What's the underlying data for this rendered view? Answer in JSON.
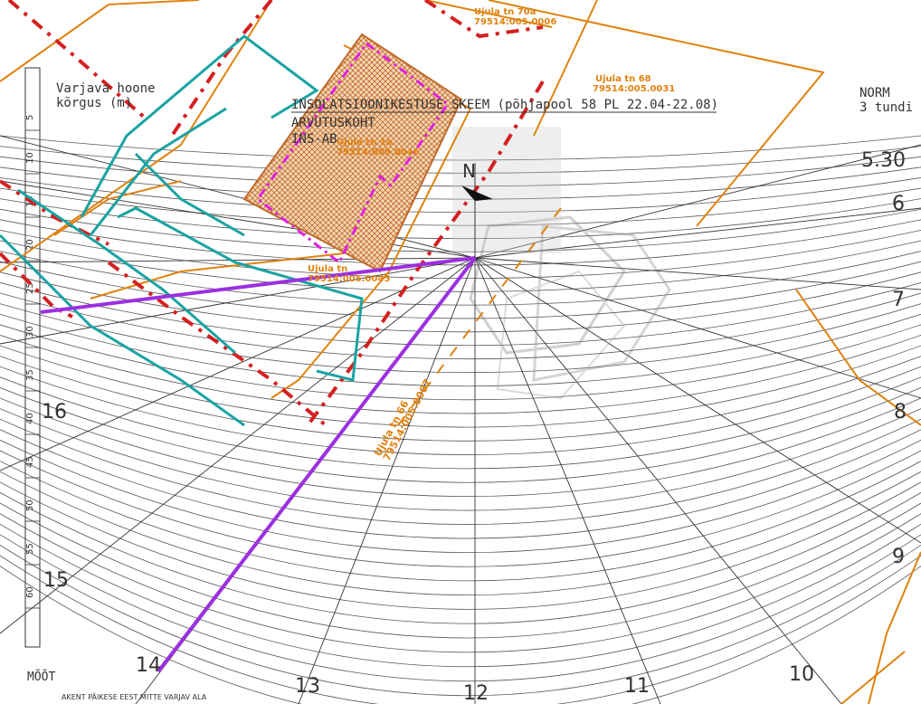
{
  "drawing": {
    "title": "INSOLATSIOONIKESTUSE SKEEM (põhjapool 58 PL 22.04-22.08)",
    "location_label": "ARVUTUSKOHT",
    "location_code": "INS-AB",
    "norm_label": "NORM",
    "norm_value": "3 tundi",
    "shading_building_label_line1": "Varjava hoone",
    "shading_building_label_line2": "kõrgus (m)",
    "north_label": "N",
    "ruler_label": "MÕÕT",
    "legend_text": "AKENT PÄIKESE EEST MITTE VARJAV ALA"
  },
  "time_labels": {
    "t530": "5.30",
    "t6": "6",
    "t7": "7",
    "t8": "8",
    "t9": "9",
    "t10": "10",
    "t11": "11",
    "t12": "12",
    "t13": "13",
    "t14": "14",
    "t15": "15",
    "t16": "16"
  },
  "ruler_ticks": [
    "5",
    "10",
    "15",
    "20",
    "25",
    "30",
    "35",
    "40",
    "45",
    "50",
    "55",
    "60"
  ],
  "parcels": {
    "p1_name": "Ujula tn 70a",
    "p1_code": "79514:005.0006",
    "p2_name": "Ujula tn 68",
    "p2_code": "79514:005.0031",
    "p3_name": "Ujula tn 1a",
    "p3_code": "79514:005.0046",
    "p4_name": "Ujula tn",
    "p4_code": "79514:005.0045",
    "p5_name": "Ujula tn 66",
    "p5_code": "79514:005.0007"
  },
  "colors": {
    "sun_lines": "#333333",
    "parcel_boundary": "#e0820f",
    "road_outline": "#d42020",
    "building_teal": "#1aa3a3",
    "shadow_limit": "#9b30e0",
    "building_hatch": "#f2c79a",
    "building_hatch_line": "#c0692a",
    "plot_boundary_magenta": "#e020e0"
  }
}
